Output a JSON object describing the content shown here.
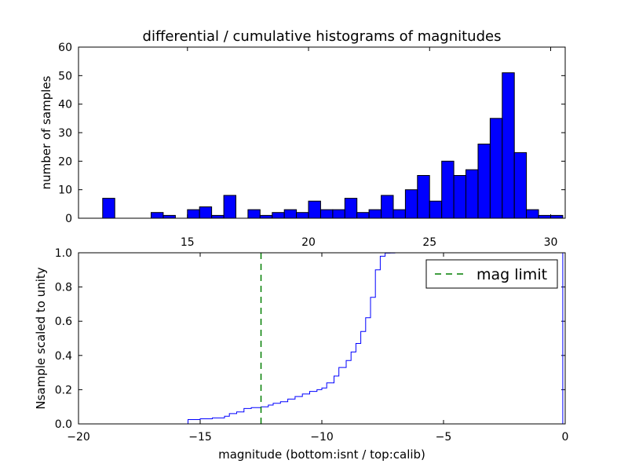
{
  "colors": {
    "bar_fill": "#0000ff",
    "cumulative_line": "#0000ff",
    "mag_limit_line": "#007f00",
    "axes": "#000000",
    "background": "#ffffff"
  },
  "chart_data": [
    {
      "type": "bar",
      "title": "differential / cumulative histograms of magnitudes",
      "xlabel": "",
      "ylabel": "number of samples",
      "xlim": [
        10.5,
        30.6
      ],
      "ylim": [
        0,
        60
      ],
      "x_ticks": [
        "15",
        "20",
        "25",
        "30"
      ],
      "y_ticks": [
        "0",
        "10",
        "20",
        "30",
        "40",
        "50",
        "60"
      ],
      "x_tick_position": "top-of-lower-panel",
      "grid": false,
      "bin_width": 0.5,
      "bins": [
        {
          "left": 11.5,
          "count": 7
        },
        {
          "left": 13.5,
          "count": 2
        },
        {
          "left": 14.0,
          "count": 1
        },
        {
          "left": 15.0,
          "count": 3
        },
        {
          "left": 15.5,
          "count": 4
        },
        {
          "left": 16.0,
          "count": 1
        },
        {
          "left": 16.5,
          "count": 8
        },
        {
          "left": 17.5,
          "count": 3
        },
        {
          "left": 18.0,
          "count": 1
        },
        {
          "left": 18.5,
          "count": 2
        },
        {
          "left": 19.0,
          "count": 3
        },
        {
          "left": 19.5,
          "count": 2
        },
        {
          "left": 20.0,
          "count": 6
        },
        {
          "left": 20.5,
          "count": 3
        },
        {
          "left": 21.0,
          "count": 3
        },
        {
          "left": 21.5,
          "count": 7
        },
        {
          "left": 22.0,
          "count": 2
        },
        {
          "left": 22.5,
          "count": 3
        },
        {
          "left": 23.0,
          "count": 8
        },
        {
          "left": 23.5,
          "count": 3
        },
        {
          "left": 24.0,
          "count": 10
        },
        {
          "left": 24.5,
          "count": 15
        },
        {
          "left": 25.0,
          "count": 6
        },
        {
          "left": 25.5,
          "count": 20
        },
        {
          "left": 26.0,
          "count": 15
        },
        {
          "left": 26.5,
          "count": 17
        },
        {
          "left": 27.0,
          "count": 26
        },
        {
          "left": 27.5,
          "count": 35
        },
        {
          "left": 28.0,
          "count": 51
        },
        {
          "left": 28.5,
          "count": 23
        },
        {
          "left": 29.0,
          "count": 3
        },
        {
          "left": 29.5,
          "count": 1
        },
        {
          "left": 30.0,
          "count": 1
        }
      ]
    },
    {
      "type": "line",
      "title": "",
      "xlabel": "magnitude (bottom:isnt / top:calib)",
      "ylabel": "Nsample scaled to unity",
      "xlim": [
        -20,
        0
      ],
      "ylim": [
        0,
        1
      ],
      "x_ticks": [
        "−20",
        "−15",
        "−10",
        "−5",
        "0"
      ],
      "y_ticks": [
        "0.0",
        "0.2",
        "0.4",
        "0.6",
        "0.8",
        "1.0"
      ],
      "grid": false,
      "legend_position": "top-right",
      "series": [
        {
          "style": "step",
          "x": [
            -20.0,
            -15.5,
            -15.0,
            -14.5,
            -14.0,
            -13.8,
            -13.5,
            -13.2,
            -12.9,
            -12.5,
            -12.2,
            -12.0,
            -11.7,
            -11.4,
            -11.1,
            -10.8,
            -10.5,
            -10.2,
            -10.0,
            -9.8,
            -9.5,
            -9.3,
            -9.0,
            -8.8,
            -8.6,
            -8.4,
            -8.2,
            -8.0,
            -7.8,
            -7.6,
            -7.4,
            -7.2,
            -7.0,
            -6.6,
            -6.4,
            -6.2,
            -6.0,
            -5.8,
            -5.6,
            -0.1,
            -0.1
          ],
          "y": [
            0.0,
            0.025,
            0.03,
            0.035,
            0.045,
            0.06,
            0.07,
            0.09,
            0.095,
            0.1,
            0.11,
            0.12,
            0.13,
            0.145,
            0.16,
            0.175,
            0.19,
            0.2,
            0.21,
            0.24,
            0.28,
            0.33,
            0.37,
            0.42,
            0.47,
            0.54,
            0.62,
            0.74,
            0.9,
            0.98,
            0.998,
            0.999,
            1.0,
            1.0,
            1.0,
            1.0,
            1.0,
            1.0,
            1.0,
            1.0,
            0.0
          ]
        },
        {
          "name": "mag limit",
          "style": "dashed-vertical",
          "x": [
            -12.5,
            -12.5
          ],
          "y": [
            0,
            1
          ]
        }
      ]
    }
  ]
}
